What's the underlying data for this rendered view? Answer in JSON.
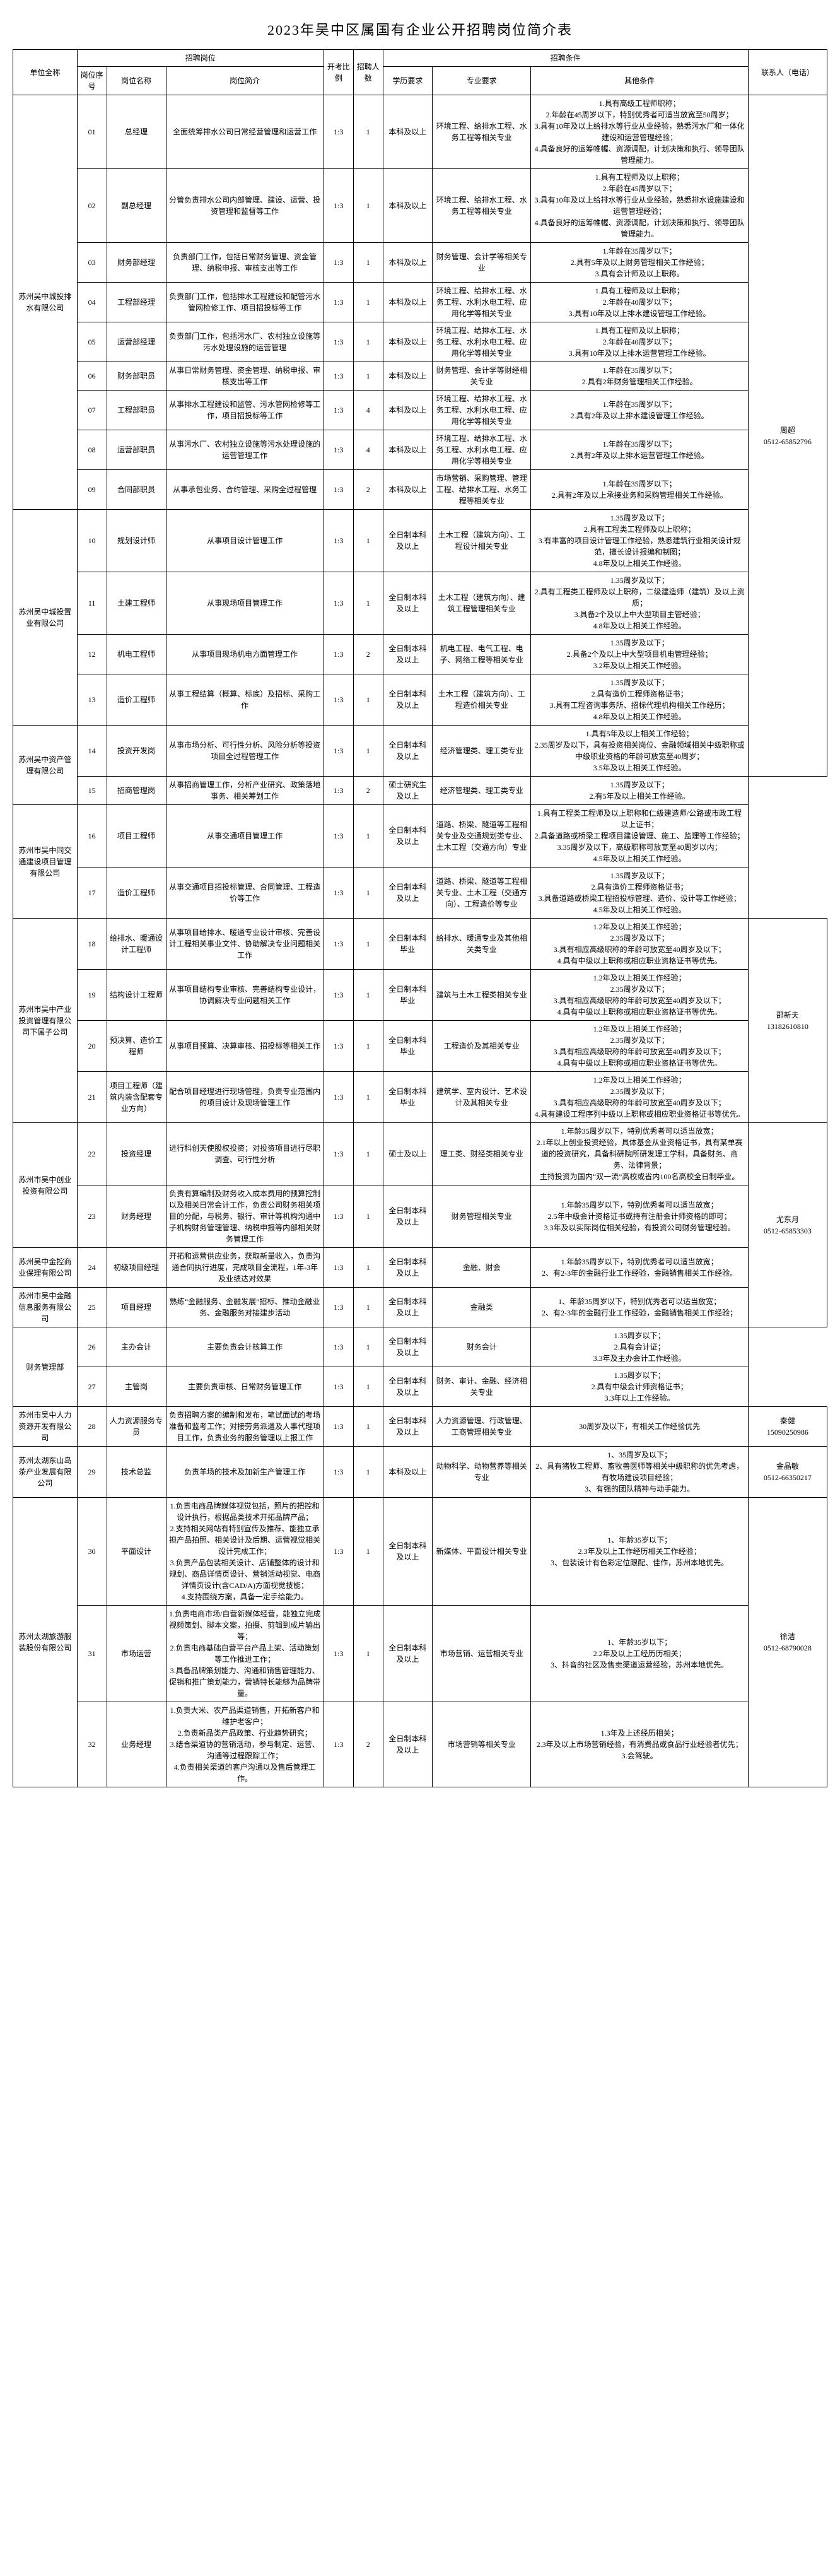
{
  "page_title": "2023年吴中区属国有企业公开招聘岗位简介表",
  "header": {
    "unit": "单位全称",
    "position_group": "招聘岗位",
    "seq": "岗位序号",
    "pos_name": "岗位名称",
    "pos_desc": "岗位简介",
    "ratio": "开考比例",
    "count": "招聘人数",
    "req_group": "招聘条件",
    "edu": "学历要求",
    "major": "专业要求",
    "other": "其他条件",
    "contact": "联系人（电话）"
  },
  "units": [
    {
      "name": "苏州吴中城投排水有限公司",
      "contact": "周超\n0512-65852796",
      "contact_rowspan": 14,
      "rows": [
        {
          "seq": "01",
          "pos": "总经理",
          "desc": "全面统筹排水公司日常经营管理和运营工作",
          "ratio": "1:3",
          "count": "1",
          "edu": "本科及以上",
          "major": "环境工程、给排水工程、水务工程等相关专业",
          "other": "1.具有高级工程师职称；\n2.年龄在45周岁以下，特别优秀者可适当放宽至50周岁；\n3.具有10年及以上给排水等行业从业经验，熟悉污水厂和一体化建设和运营管理经验；\n4.具备良好的运筹帷幄、资源调配，计划决策和执行、领导团队管理能力。"
        },
        {
          "seq": "02",
          "pos": "副总经理",
          "desc": "分管负责排水公司内部管理、建设、运营、投资管理和监督等工作",
          "ratio": "1:3",
          "count": "1",
          "edu": "本科及以上",
          "major": "环境工程、给排水工程、水务工程等相关专业",
          "other": "1.具有工程师及以上职称；\n2.年龄在45周岁以下；\n3.具有10年及以上给排水等行业从业经验，熟悉排水设施建设和运营管理经验；\n4.具备良好的运筹帷幄、资源调配，计划决策和执行、领导团队管理能力。"
        },
        {
          "seq": "03",
          "pos": "财务部经理",
          "desc": "负责部门工作，包括日常财务管理、资金管理、纳税申报、审核支出等工作",
          "ratio": "1:3",
          "count": "1",
          "edu": "本科及以上",
          "major": "财务管理、会计学等相关专业",
          "other": "1.年龄在35周岁以下；\n2.具有5年及以上财务管理相关工作经验；\n3.具有会计师及以上职称。"
        },
        {
          "seq": "04",
          "pos": "工程部经理",
          "desc": "负责部门工作，包括排水工程建设和配管污水管网检修工作、项目招投标等工作",
          "ratio": "1:3",
          "count": "1",
          "edu": "本科及以上",
          "major": "环境工程、给排水工程、水务工程、水利水电工程、应用化学等相关专业",
          "other": "1.具有工程师及以上职称；\n2.年龄在40周岁以下；\n3.具有10年及以上排水建设管理工作经验。"
        },
        {
          "seq": "05",
          "pos": "运营部经理",
          "desc": "负责部门工作，包括污水厂、农村独立设施等污水处理设施的运营管理",
          "ratio": "1:3",
          "count": "1",
          "edu": "本科及以上",
          "major": "环境工程、给排水工程、水务工程、水利水电工程、应用化学等相关专业",
          "other": "1.具有工程师及以上职称；\n2.年龄在40周岁以下；\n3.具有10年及以上排水运营管理工作经验。"
        },
        {
          "seq": "06",
          "pos": "财务部职员",
          "desc": "从事日常财务管理、资金管理、纳税申报、审核支出等工作",
          "ratio": "1:3",
          "count": "1",
          "edu": "本科及以上",
          "major": "财务管理、会计学等财经相关专业",
          "other": "1.年龄在35周岁以下；\n2.具有2年财务管理相关工作经验。"
        },
        {
          "seq": "07",
          "pos": "工程部职员",
          "desc": "从事排水工程建设和监管、污水管网检修等工作，项目招投标等工作",
          "ratio": "1:3",
          "count": "4",
          "edu": "本科及以上",
          "major": "环境工程、给排水工程、水务工程、水利水电工程、应用化学等相关专业",
          "other": "1.年龄在35周岁以下；\n2.具有2年及以上排水建设管理工作经验。"
        },
        {
          "seq": "08",
          "pos": "运营部职员",
          "desc": "从事污水厂、农村独立设施等污水处理设施的运营管理工作",
          "ratio": "1:3",
          "count": "4",
          "edu": "本科及以上",
          "major": "环境工程、给排水工程、水务工程、水利水电工程、应用化学等相关专业",
          "other": "1.年龄在35周岁以下；\n2.具有2年及以上排水运营管理工作经验。"
        },
        {
          "seq": "09",
          "pos": "合同部职员",
          "desc": "从事承包业务、合约管理、采购全过程管理",
          "ratio": "1:3",
          "count": "2",
          "edu": "本科及以上",
          "major": "市场营销、采购管理、管理工程、给排水工程、水务工程等相关专业",
          "other": "1.年龄在35周岁以下；\n2.具有2年及以上承接业务和采购管理相关工作经验。"
        }
      ]
    },
    {
      "name": "苏州吴中城投置业有限公司",
      "rows": [
        {
          "seq": "10",
          "pos": "规划设计师",
          "desc": "从事项目设计管理工作",
          "ratio": "1:3",
          "count": "1",
          "edu": "全日制本科及以上",
          "major": "土木工程（建筑方向）、工程设计相关专业",
          "other": "1.35周岁及以下；\n2.具有工程类工程师及以上职称；\n3.有丰富的项目设计管理工作经验，熟悉建筑行业相关设计规范，擅长设计报编和制图；\n4.8年及以上相关工作经验。"
        },
        {
          "seq": "11",
          "pos": "土建工程师",
          "desc": "从事现场项目管理工作",
          "ratio": "1:3",
          "count": "1",
          "edu": "全日制本科及以上",
          "major": "土木工程（建筑方向）、建筑工程管理相关专业",
          "other": "1.35周岁及以下；\n2.具有工程类工程师及以上职称，二级建造师（建筑）及以上资质；\n3.具备2个及以上中大型项目主管经验；\n4.8年及以上相关工作经验。"
        },
        {
          "seq": "12",
          "pos": "机电工程师",
          "desc": "从事项目现场机电方面管理工作",
          "ratio": "1:3",
          "count": "2",
          "edu": "全日制本科及以上",
          "major": "机电工程、电气工程、电子、网络工程等相关专业",
          "other": "1.35周岁及以下；\n2.具备2个及以上中大型项目机电管理经验；\n3.2年及以上相关工作经验。"
        },
        {
          "seq": "13",
          "pos": "造价工程师",
          "desc": "从事工程结算（概算、标底）及招标、采购工作",
          "ratio": "1:3",
          "count": "1",
          "edu": "全日制本科及以上",
          "major": "土木工程（建筑方向）、工程造价相关专业",
          "other": "1.35周岁及以下；\n2.具有造价工程师资格证书；\n3.具有工程咨询事务所、招标代理机构相关工作经历；\n4.8年及以上相关工作经验。"
        }
      ]
    },
    {
      "name": "苏州吴中资产管理有限公司",
      "rows": [
        {
          "seq": "14",
          "pos": "投资开发岗",
          "desc": "从事市场分析、可行性分析、风险分析等投资项目全过程管理工作",
          "ratio": "1:3",
          "count": "1",
          "edu": "全日制本科及以上",
          "major": "经济管理类、理工类专业",
          "other": "1.具有5年及以上相关工作经验；\n2.35周岁及以下，具有投资相关岗位、金融领域相关中级职称或中级职业资格的年龄可放宽至40周岁；\n3.5年及以上相关工作经验。"
        },
        {
          "seq": "15",
          "pos": "招商管理岗",
          "desc": "从事招商管理工作，分析产业研究、政策落地事务、相关筹划工作",
          "ratio": "1:3",
          "count": "2",
          "edu": "硕士研究生及以上",
          "major": "经济管理类、理工类专业",
          "other": "1.35周岁及以下；\n2.有5年及以上相关工作经验。"
        }
      ]
    },
    {
      "name": "苏州市吴中同交通建设项目管理有限公司",
      "rows": [
        {
          "seq": "16",
          "pos": "项目工程师",
          "desc": "从事交通项目管理工作",
          "ratio": "1:3",
          "count": "1",
          "edu": "全日制本科及以上",
          "major": "道路、桥梁、隧道等工程相关专业及交通规划类专业、土木工程（交通方向）专业",
          "other": "1.具有工程类工程师及以上职称和仁级建造师/公路或市政工程以上证书；\n2.具备道路或桥梁工程项目建设管理、施工、监理等工作经验；\n3.35周岁及以下，高级职称可放宽至40周岁以内；\n4.5年及以上相关工作经验。"
        },
        {
          "seq": "17",
          "pos": "造价工程师",
          "desc": "从事交通项目招投标管理、合同管理、工程造价等工作",
          "ratio": "1:3",
          "count": "1",
          "edu": "全日制本科及以上",
          "major": "道路、桥梁、隧道等工程相关专业、土木工程（交通方向）、工程造价等专业",
          "other": "1.35周岁及以下；\n2.具有造价工程师资格证书；\n3.具备道路或桥梁工程招投标管理、造价、设计等工作经验；\n4.5年及以上相关工作经验。"
        }
      ]
    },
    {
      "name": "苏州市吴中产业投资管理有限公司下属子公司",
      "contact": "邵新夫\n13182610810",
      "contact_rowspan": 4,
      "rows": [
        {
          "seq": "18",
          "pos": "给排水、暖通设计工程师",
          "desc": "从事项目给排水、暖通专业设计审核、完善设计工程相关事业文件、协助解决专业问题相关工作",
          "ratio": "1:3",
          "count": "1",
          "edu": "全日制本科毕业",
          "major": "给排水、暖通专业及其他相关类专业",
          "other": "1.2年及以上相关工作经验；\n2.35周岁及以下；\n3.具有相应高级职称的年龄可放宽至40周岁及以下；\n4.具有中级以上职称或相应职业资格证书等优先。"
        },
        {
          "seq": "19",
          "pos": "结构设计工程师",
          "desc": "从事项目结构专业审核、完善结构专业设计，协调解决专业问题相关工作",
          "ratio": "1:3",
          "count": "1",
          "edu": "全日制本科毕业",
          "major": "建筑与土木工程类相关专业",
          "other": "1.2年及以上相关工作经验；\n2.35周岁及以下；\n3.具有相应高级职称的年龄可放宽至40周岁及以下；\n4.具有中级以上职称或相应职业资格证书等优先。"
        },
        {
          "seq": "20",
          "pos": "预决算、造价工程师",
          "desc": "从事项目预算、决算审核、招投标等相关工作",
          "ratio": "1:3",
          "count": "1",
          "edu": "全日制本科毕业",
          "major": "工程造价及其相关专业",
          "other": "1.2年及以上相关工作经验；\n2.35周岁及以下；\n3.具有相应高级职称的年龄可放宽至40周岁及以下；\n4.具有中级以上职称或相应职业资格证书等优先。"
        },
        {
          "seq": "21",
          "pos": "项目工程师（建筑内装含配套专业方向）",
          "desc": "配合项目经理进行现场管理，负责专业范围内的项目设计及现场管理工作",
          "ratio": "1:3",
          "count": "1",
          "edu": "全日制本科毕业",
          "major": "建筑学、室内设计、艺术设计及其相关专业",
          "other": "1.2年及以上相关工作经验；\n2.35周岁及以下；\n3.具有相应高级职称的年龄可放宽至40周岁及以下；\n4.具有建设工程序列中级以上职称或相应职业资格证书等优先。"
        }
      ]
    },
    {
      "name": "苏州市吴中创业投资有限公司",
      "contact": "尤东月\n0512-65853303",
      "contact_rowspan": 4,
      "rows": [
        {
          "seq": "22",
          "pos": "投资经理",
          "desc": "进行科创天使股权投资；对投资项目进行尽职调查、可行性分析",
          "ratio": "1:3",
          "count": "1",
          "edu": "硕士及以上",
          "major": "理工类、财经类相关专业",
          "other": "1.年龄35周岁以下，特别优秀者可以适当放宽；\n2.1年以上创业投资经验，具体基金从业资格证书，具有某单赛道的投资研究，具备科研院所研发理工学科，具备财务、商务、法律背景；\n主持投资为国内“双一流”高校或省内100名高校全日制毕业。"
        },
        {
          "seq": "23",
          "pos": "财务经理",
          "desc": "负责有算编制及财务收入成本费用的预算控制以及相关日常会计工作，负责公司财务相关项目的分配，与税务、银行、审计等机构沟通中子机构财务管理管理、纳税申报等内部相关财务管理工作",
          "ratio": "1:3",
          "count": "1",
          "edu": "全日制本科及以上",
          "major": "财务管理相关专业",
          "other": "1.年龄35周岁以下，特别优秀者可以适当放宽；\n2.5年中级会计资格证书或持有注册会计师资格的即可；\n3.3年及以实际岗位相关经验，有投资公司财务管理经验。"
        }
      ]
    },
    {
      "name": "苏州吴中金控商业保理有限公司",
      "rows": [
        {
          "seq": "24",
          "pos": "初级项目经理",
          "desc": "开拓和运营供应业务，获取新量收入，负责沟通合同执行进度，完成项目全流程，1年-3年及业绩达对效果",
          "ratio": "1:3",
          "count": "1",
          "edu": "全日制本科及以上",
          "major": "金融、财会",
          "other": "1.年龄35周岁以下，特别优秀者可以适当放宽；\n2、有2-3年的金融行业工作经验，金融销售相关工作经验。"
        }
      ]
    },
    {
      "name": "苏州市吴中金融信息服务有限公司",
      "rows": [
        {
          "seq": "25",
          "pos": "项目经理",
          "desc": "熟练“金融服务、金融发展”招标、推动金融业务、金融服务对接建步活动",
          "ratio": "1:3",
          "count": "1",
          "edu": "全日制本科及以上",
          "major": "金融类",
          "other": "1、年龄35周岁以下，特别优秀者可以适当放宽；\n2、有2-3年的金融行业工作经验，金融销售相关工作经验；"
        }
      ]
    },
    {
      "name": "财务管理部",
      "rows": [
        {
          "seq": "26",
          "pos": "主办会计",
          "desc": "主要负责会计核算工作",
          "ratio": "1:3",
          "count": "1",
          "edu": "全日制本科及以上",
          "major": "财务会计",
          "other": "1.35周岁以下；\n2.具有会计证；\n3.3年及主办会计工作经验。"
        },
        {
          "seq": "27",
          "pos": "主管岗",
          "desc": "主要负责审核、日常财务管理工作",
          "ratio": "1:3",
          "count": "1",
          "edu": "全日制本科及以上",
          "major": "财务、审计、金融、经济相关专业",
          "other": "1.35周岁以下；\n2.具有中级会计师资格证书；\n3.3年以上工作经验。"
        }
      ]
    },
    {
      "name": "苏州市吴中人力资源开发有限公司",
      "contact": "秦健\n15090250986",
      "contact_rowspan": 1,
      "rows": [
        {
          "seq": "28",
          "pos": "人力资源服务专员",
          "desc": "负责招聘方案的编制和发布，笔试面试的考场准备和监考工作；对接劳务派遣及人事代理项目工作，负责业务的服务管理以上报工作",
          "ratio": "1:3",
          "count": "1",
          "edu": "全日制本科及以上",
          "major": "人力资源管理、行政管理、工商管理相关专业",
          "other": "30周岁及以下，有相关工作经验优先"
        }
      ]
    },
    {
      "name": "苏州太湖东山岛茶产业发展有限公司",
      "contact": "金晶敏\n0512-66350217",
      "contact_rowspan": 1,
      "rows": [
        {
          "seq": "29",
          "pos": "技术总监",
          "desc": "负责羊场的技术及加新生产管理工作",
          "ratio": "1:3",
          "count": "1",
          "edu": "本科及以上",
          "major": "动物科学、动物营养等相关专业",
          "other": "1、35周岁及以下；\n2、具有猪牧工程师、畜牧兽医师等相关中级职称的优先考虑，有牧场建设项目经验；\n3、有强的团队精神与动手能力。"
        }
      ]
    },
    {
      "name": "苏州太湖旅游服装股份有限公司",
      "contact": "徐洁\n0512-68790028",
      "contact_rowspan": 3,
      "rows": [
        {
          "seq": "30",
          "pos": "平面设计",
          "desc": "1.负责电商品牌媒体视觉包括，照片的把控和设计执行，根据品类技术开拓品牌产品；\n2.支持相关网站有特别宣传及推荐、能独立承担产品拍照、相关设计及后期、运营视觉相关设计完成工作；\n3.负责产品包装相关设计、店铺整体的设计和规划、商品详情页设计、营销活动视觉、电商详情页设计(含CAD/A)方面视觉技能；\n4.支持围绕方案，具备一定手绘能力。",
          "ratio": "1:3",
          "count": "1",
          "edu": "全日制本科及以上",
          "major": "新媒体、平面设计相关专业",
          "other": "1、年龄35岁以下；\n2.3年及以上工作经历相关工作经验；\n3、包装设计有色彩定位跟配、佳作，苏州本地优先。"
        },
        {
          "seq": "31",
          "pos": "市场运营",
          "desc": "1.负责电商市场/自营新媒体经营，能独立完成视频策划、脚本文案，拍摄、剪辑到成片输出等；\n2.负责电商基础自营平台产品上架、活动策划等工作推进工作；\n3.具备品牌策划能力、沟通和销售管理能力、促销和推广策划能力，营销特长能够为品牌带量。",
          "ratio": "1:3",
          "count": "1",
          "edu": "全日制本科及以上",
          "major": "市场营销、运营相关专业",
          "other": "1、年龄35岁以下；\n2.2年及以上工经历历相关；\n3、抖音的社区及售卖渠道运营经验，苏州本地优先。"
        },
        {
          "seq": "32",
          "pos": "业务经理",
          "desc": "1.负责大米、农产品渠道销售，开拓新客户和维护老客户；\n2.负责新品类产品政策、行业趋势研究；\n3.结合渠道协的营销活动，参与制定、运营、沟通等过程跟踪工作；\n4.负责相关渠道的客户沟通以及售后管理工作。",
          "ratio": "1:3",
          "count": "2",
          "edu": "全日制本科及以上",
          "major": "市场营销等相关专业",
          "other": "1.3年及上述经历相关；\n2.3年及以上市场营销经验，有消费品或食品行业经验者优先；\n3.会驾驶。"
        }
      ]
    }
  ]
}
